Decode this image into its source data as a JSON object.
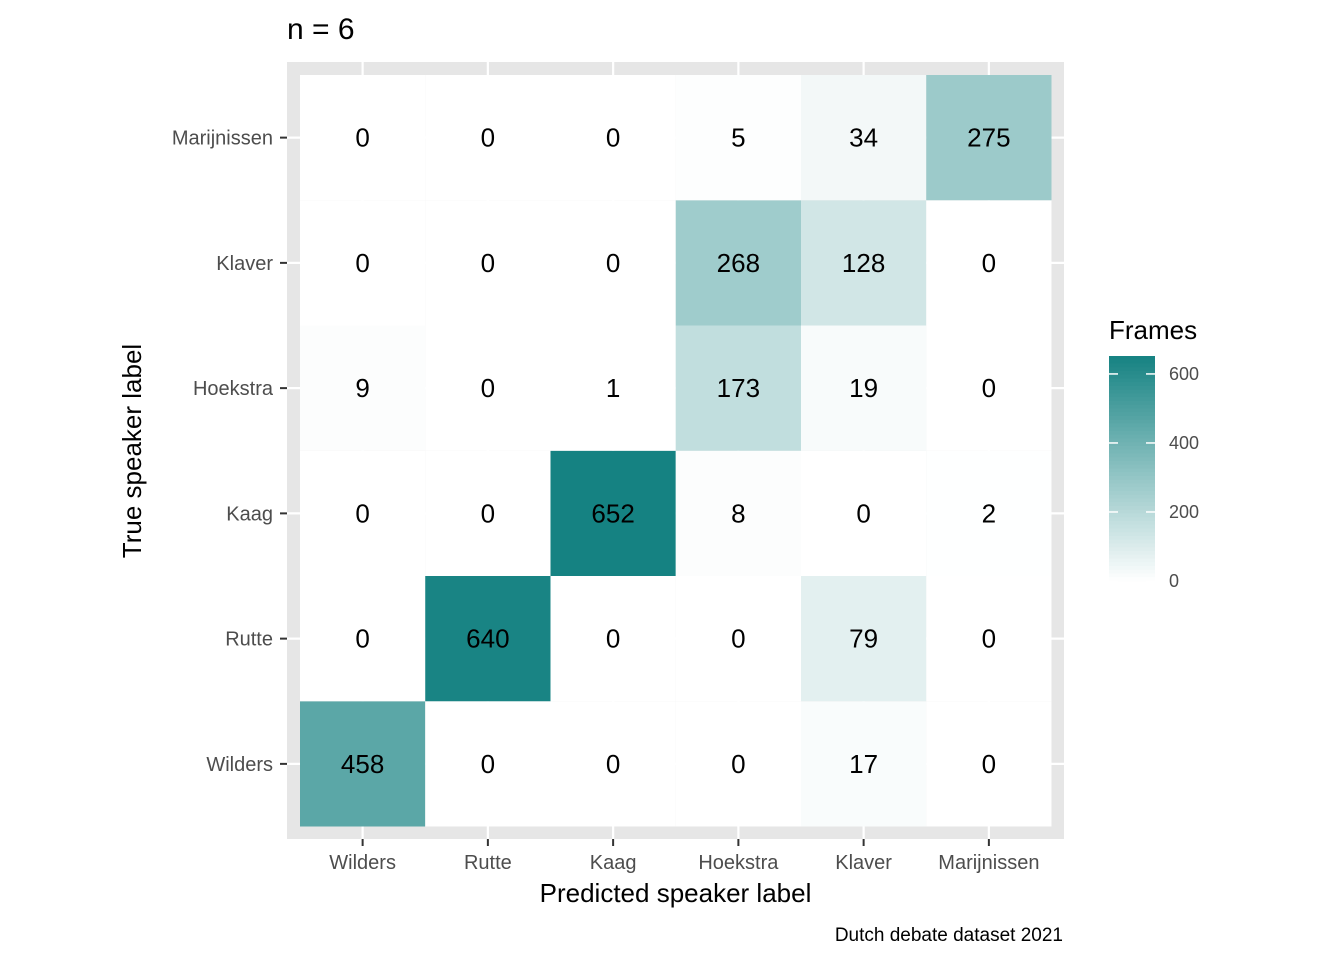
{
  "chart_data": {
    "type": "heatmap",
    "title": "n = 6",
    "xlabel": "Predicted speaker label",
    "ylabel": "True speaker label",
    "caption": "Dutch debate dataset 2021",
    "x_categories": [
      "Wilders",
      "Rutte",
      "Kaag",
      "Hoekstra",
      "Klaver",
      "Marijnissen"
    ],
    "y_categories": [
      "Wilders",
      "Rutte",
      "Kaag",
      "Hoekstra",
      "Klaver",
      "Marijnissen"
    ],
    "values": [
      [
        458,
        0,
        0,
        0,
        17,
        0
      ],
      [
        0,
        640,
        0,
        0,
        79,
        0
      ],
      [
        0,
        0,
        652,
        8,
        0,
        2
      ],
      [
        9,
        0,
        1,
        173,
        19,
        0
      ],
      [
        0,
        0,
        0,
        268,
        128,
        0
      ],
      [
        0,
        0,
        0,
        5,
        34,
        275
      ]
    ],
    "legend": {
      "title": "Frames",
      "ticks": [
        0,
        200,
        400,
        600
      ],
      "range": [
        0,
        652
      ],
      "low_color": "#ffffff",
      "high_color": "#158282"
    },
    "grid": true,
    "panel_background": "#e6e6e6",
    "legend_placement": "right"
  }
}
